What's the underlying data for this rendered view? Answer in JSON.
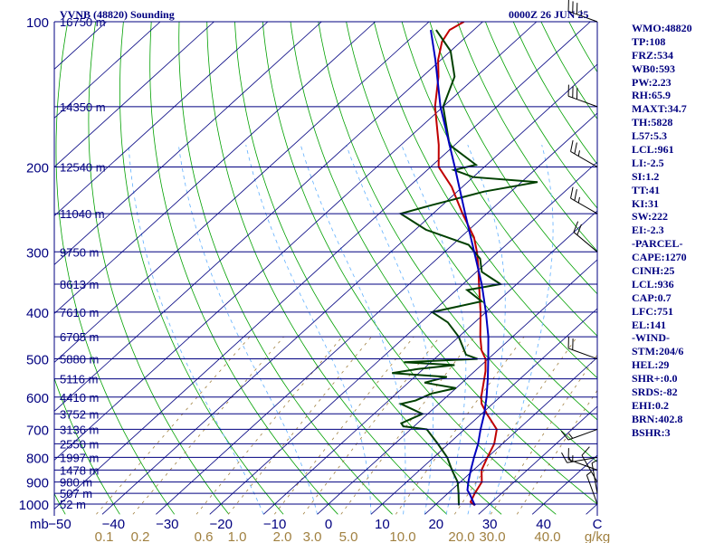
{
  "header": {
    "station": "VVNB (48820) Sounding",
    "time": "0000Z 26 JUN 25"
  },
  "indices": [
    "WMO:48820",
    "TP:108",
    "FRZ:534",
    "WB0:593",
    "PW:2.23",
    "RH:65.9",
    "MAXT:34.7",
    "TH:5828",
    "L57:5.3",
    "LCL:961",
    "LI:-2.5",
    "SI:1.2",
    "TT:41",
    "KI:31",
    "SW:222",
    "EI:-2.3",
    "-PARCEL-",
    "CAPE:1270",
    "CINH:25",
    "LCL:936",
    "CAP:0.7",
    "LFC:751",
    "EL:141",
    "-WIND-",
    "STM:204/6",
    "HEL:29",
    "SHR+:0.0",
    "SRDS:-82",
    "EHI:0.2",
    "BRN:402.8",
    "BSHR:3"
  ],
  "colors": {
    "frame": "#000080",
    "isobar": "#000080",
    "isotherm": "#000080",
    "dry_adiabat": "#00a000",
    "moist_adiabat": "#60b0ff",
    "mixing_ratio": "#a08040",
    "temperature": "#c00000",
    "dewpoint": "#004000",
    "parcel": "#0000c0",
    "axis_text": "#a08040"
  },
  "chart_data": {
    "type": "skew-t",
    "pressure_unit": "mb",
    "temperature_unit": "C",
    "mixing_ratio_unit": "g/kg",
    "ylim_mb": [
      1000,
      100
    ],
    "xlim_c": [
      -50,
      50
    ],
    "pressure_ticks": [
      100,
      200,
      300,
      400,
      500,
      600,
      700,
      800,
      900,
      1000
    ],
    "temperature_ticks": [
      -50,
      -40,
      -30,
      -20,
      -10,
      0,
      10,
      20,
      30,
      40
    ],
    "mixing_ratio_ticks": [
      "0.1",
      "0.2",
      "0.6",
      "1.0",
      "2.0",
      "3.0",
      "5.0",
      "10.0",
      "20.0",
      "30.0",
      "40.0"
    ],
    "heights": [
      {
        "p": 100,
        "label": "16750 m"
      },
      {
        "p": 150,
        "label": "14350 m"
      },
      {
        "p": 200,
        "label": "12540 m"
      },
      {
        "p": 250,
        "label": "11040 m"
      },
      {
        "p": 300,
        "label": "9750 m"
      },
      {
        "p": 350,
        "label": "8613 m"
      },
      {
        "p": 400,
        "label": "7610 m"
      },
      {
        "p": 450,
        "label": "6705 m"
      },
      {
        "p": 500,
        "label": "5880 m"
      },
      {
        "p": 550,
        "label": "5116 m"
      },
      {
        "p": 600,
        "label": "4410 m"
      },
      {
        "p": 650,
        "label": "3752 m"
      },
      {
        "p": 700,
        "label": "3136 m"
      },
      {
        "p": 750,
        "label": "2550 m"
      },
      {
        "p": 800,
        "label": "1997 m"
      },
      {
        "p": 850,
        "label": "1478 m"
      },
      {
        "p": 900,
        "label": "980 m"
      },
      {
        "p": 950,
        "label": "507 m"
      },
      {
        "p": 1000,
        "label": "52 m"
      }
    ],
    "series": [
      {
        "key": "temperature",
        "points": [
          [
            1006,
            27.5
          ],
          [
            990,
            26.0
          ],
          [
            950,
            25.0
          ],
          [
            900,
            24.0
          ],
          [
            850,
            21.5
          ],
          [
            800,
            20.0
          ],
          [
            750,
            18.5
          ],
          [
            700,
            16.0
          ],
          [
            650,
            11.0
          ],
          [
            620,
            8.0
          ],
          [
            600,
            6.5
          ],
          [
            560,
            4.0
          ],
          [
            530,
            2.0
          ],
          [
            500,
            -0.5
          ],
          [
            480,
            -3.0
          ],
          [
            450,
            -6.0
          ],
          [
            400,
            -11.0
          ],
          [
            350,
            -17.0
          ],
          [
            320,
            -21.0
          ],
          [
            300,
            -24.0
          ],
          [
            280,
            -27.5
          ],
          [
            250,
            -34.5
          ],
          [
            220,
            -42.0
          ],
          [
            200,
            -48.5
          ],
          [
            180,
            -53.0
          ],
          [
            150,
            -61.5
          ],
          [
            130,
            -67.0
          ],
          [
            120,
            -70.5
          ],
          [
            110,
            -73.5
          ],
          [
            104,
            -74.5
          ],
          [
            100,
            -73.5
          ]
        ]
      },
      {
        "key": "dewpoint",
        "points": [
          [
            1006,
            24.5
          ],
          [
            990,
            23.8
          ],
          [
            950,
            22.0
          ],
          [
            900,
            19.5
          ],
          [
            850,
            16.0
          ],
          [
            800,
            12.5
          ],
          [
            750,
            8.0
          ],
          [
            700,
            3.0
          ],
          [
            690,
            -2.0
          ],
          [
            680,
            -3.0
          ],
          [
            650,
            -1.0
          ],
          [
            620,
            -7.0
          ],
          [
            610,
            -5.0
          ],
          [
            590,
            -3.5
          ],
          [
            575,
            0.0
          ],
          [
            560,
            -7.0
          ],
          [
            545,
            -4.0
          ],
          [
            535,
            -15.0
          ],
          [
            525,
            -11.0
          ],
          [
            515,
            -5.0
          ],
          [
            508,
            -15.0
          ],
          [
            500,
            -2.0
          ],
          [
            490,
            -5.0
          ],
          [
            450,
            -10.0
          ],
          [
            420,
            -15.0
          ],
          [
            400,
            -20.0
          ],
          [
            380,
            -13.0
          ],
          [
            360,
            -18.0
          ],
          [
            350,
            -13.0
          ],
          [
            330,
            -19.0
          ],
          [
            310,
            -22.0
          ],
          [
            290,
            -27.0
          ],
          [
            270,
            -38.0
          ],
          [
            250,
            -46.0
          ],
          [
            240,
            -42.0
          ],
          [
            225,
            -35.0
          ],
          [
            215,
            -27.0
          ],
          [
            210,
            -40.0
          ],
          [
            203,
            -45.0
          ],
          [
            198,
            -42.0
          ],
          [
            180,
            -51.0
          ],
          [
            150,
            -60.0
          ],
          [
            130,
            -64.0
          ],
          [
            115,
            -70.0
          ],
          [
            104,
            -77.0
          ]
        ]
      },
      {
        "key": "parcel",
        "points": [
          [
            1006,
            27.5
          ],
          [
            950,
            24.0
          ],
          [
            936,
            23.0
          ],
          [
            900,
            21.5
          ],
          [
            850,
            19.5
          ],
          [
            800,
            17.5
          ],
          [
            750,
            15.5
          ],
          [
            700,
            13.0
          ],
          [
            650,
            10.5
          ],
          [
            600,
            7.5
          ],
          [
            550,
            4.0
          ],
          [
            500,
            0.0
          ],
          [
            450,
            -4.5
          ],
          [
            400,
            -10.0
          ],
          [
            350,
            -16.5
          ],
          [
            300,
            -24.5
          ],
          [
            250,
            -34.0
          ],
          [
            200,
            -45.5
          ],
          [
            150,
            -60.5
          ],
          [
            120,
            -71.0
          ],
          [
            104,
            -78.0
          ]
        ]
      }
    ],
    "wind_barbs": [
      {
        "p": 1000,
        "dir": 340,
        "spd": 5
      },
      {
        "p": 950,
        "dir": 350,
        "spd": 5
      },
      {
        "p": 900,
        "dir": 330,
        "spd": 10
      },
      {
        "p": 850,
        "dir": 290,
        "spd": 15
      },
      {
        "p": 800,
        "dir": 260,
        "spd": 15
      },
      {
        "p": 700,
        "dir": 250,
        "spd": 15
      },
      {
        "p": 500,
        "dir": 290,
        "spd": 20
      },
      {
        "p": 300,
        "dir": 310,
        "spd": 20
      },
      {
        "p": 250,
        "dir": 300,
        "spd": 25
      },
      {
        "p": 200,
        "dir": 300,
        "spd": 25
      },
      {
        "p": 150,
        "dir": 290,
        "spd": 30
      },
      {
        "p": 100,
        "dir": 290,
        "spd": 35
      }
    ]
  }
}
